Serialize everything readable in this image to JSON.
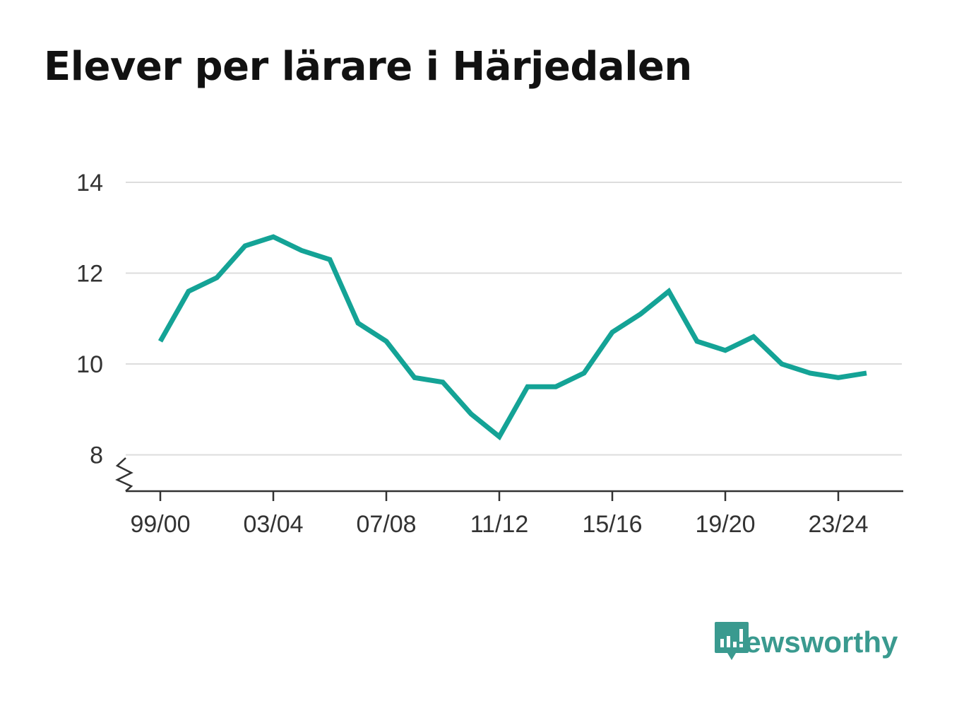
{
  "title": "Elever per lärare i Härjedalen",
  "brand": {
    "name": "Newsworthy",
    "icon": "newsworthy-logo-icon",
    "color": "#3a9a8f"
  },
  "chart_data": {
    "type": "line",
    "title": "Elever per lärare i Härjedalen",
    "xlabel": "",
    "ylabel": "",
    "ylim": [
      7.2,
      14
    ],
    "y_axis_break": true,
    "yticks": [
      8,
      10,
      12,
      14
    ],
    "grid": true,
    "line_color": "#14a396",
    "categories": [
      "99/00",
      "00/01",
      "01/02",
      "02/03",
      "03/04",
      "04/05",
      "05/06",
      "06/07",
      "07/08",
      "08/09",
      "09/10",
      "10/11",
      "11/12",
      "12/13",
      "13/14",
      "14/15",
      "15/16",
      "16/17",
      "17/18",
      "18/19",
      "19/20",
      "20/21",
      "21/22",
      "22/23",
      "23/24",
      "24/25"
    ],
    "xtick_labels": [
      "99/00",
      "03/04",
      "07/08",
      "11/12",
      "15/16",
      "19/20",
      "23/24"
    ],
    "series": [
      {
        "values": [
          10.5,
          11.6,
          11.9,
          12.6,
          12.8,
          12.5,
          12.3,
          10.9,
          10.5,
          9.7,
          9.6,
          8.9,
          8.4,
          9.5,
          9.5,
          9.8,
          10.7,
          11.1,
          11.6,
          10.5,
          10.3,
          10.6,
          10.0,
          9.8,
          9.7,
          9.8
        ]
      }
    ]
  }
}
